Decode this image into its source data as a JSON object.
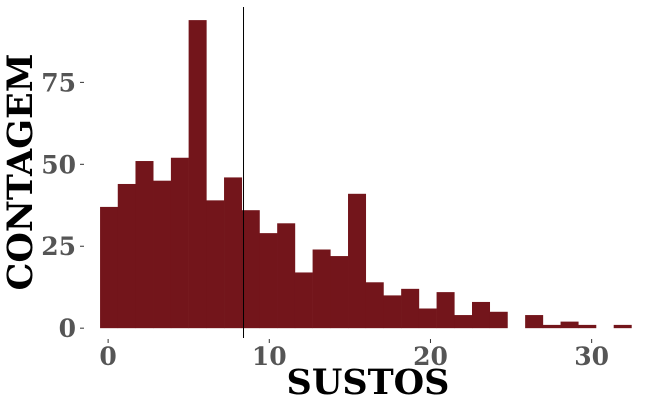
{
  "chart_data": {
    "type": "bar",
    "title": "",
    "xlabel": "SUSTOS",
    "ylabel": "CONTAGEM",
    "bar_color": "#73151b",
    "tick_label_color": "#555555",
    "bin_width": 1.0989,
    "x_start": -0.5,
    "values": [
      37,
      44,
      51,
      45,
      52,
      94,
      39,
      46,
      36,
      29,
      32,
      17,
      24,
      22,
      41,
      14,
      10,
      12,
      6,
      11,
      4,
      8,
      5,
      0,
      4,
      1,
      2,
      1,
      0,
      1
    ],
    "vline_x": 8.4,
    "xlim": [
      -1,
      33
    ],
    "ylim": [
      -3,
      98
    ],
    "xticks": [
      0,
      10,
      20,
      30
    ],
    "yticks": [
      0,
      25,
      50,
      75
    ],
    "xtick_labels": [
      "0",
      "10",
      "20",
      "30"
    ],
    "ytick_labels": [
      "0",
      "25",
      "50",
      "75"
    ],
    "grid": false,
    "legend": "none"
  }
}
